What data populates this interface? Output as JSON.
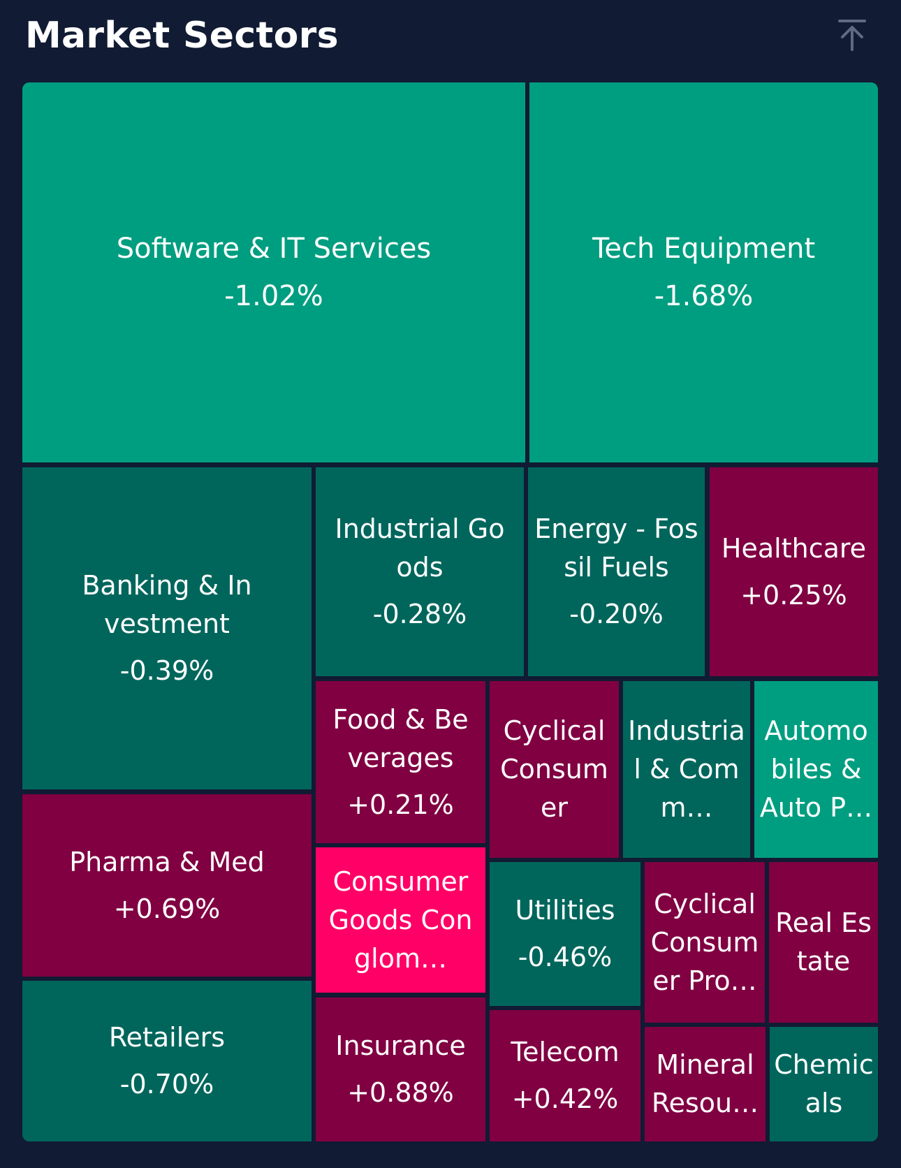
{
  "header": {
    "title": "Market Sectors",
    "scroll_top_icon": "arrow-up-to-line-icon"
  },
  "colors": {
    "background": "#111b33",
    "bright_green": "#009e80",
    "dark_green": "#00665c",
    "dark_red": "#800042",
    "bright_pink": "#ff0066"
  },
  "sectors": [
    {
      "name": "Software & IT Services",
      "change": "-1.02%",
      "color": "bright_green"
    },
    {
      "name": "Tech Equipment",
      "change": "-1.68%",
      "color": "bright_green"
    },
    {
      "name": "Banking & Investment",
      "change": "-0.39%",
      "color": "dark_green"
    },
    {
      "name": "Industrial Goods",
      "change": "-0.28%",
      "color": "dark_green"
    },
    {
      "name": "Energy - Fossil Fuels",
      "change": "-0.20%",
      "color": "dark_green"
    },
    {
      "name": "Healthcare",
      "change": "+0.25%",
      "color": "dark_red"
    },
    {
      "name": "Food & Beverages",
      "change": "+0.21%",
      "color": "dark_red"
    },
    {
      "name": "Cyclical Consumer",
      "change": "",
      "color": "dark_red"
    },
    {
      "name": "Industrial & Comm…",
      "change": "",
      "color": "dark_green"
    },
    {
      "name": "Automobiles & Auto P…",
      "change": "",
      "color": "bright_green"
    },
    {
      "name": "Pharma & Med",
      "change": "+0.69%",
      "color": "dark_red"
    },
    {
      "name": "Consumer Goods Conglom…",
      "change": "",
      "color": "bright_pink"
    },
    {
      "name": "Utilities",
      "change": "-0.46%",
      "color": "dark_green"
    },
    {
      "name": "Cyclical Consumer Pro…",
      "change": "",
      "color": "dark_red"
    },
    {
      "name": "Real Estate",
      "change": "",
      "color": "dark_red"
    },
    {
      "name": "Retailers",
      "change": "-0.70%",
      "color": "dark_green"
    },
    {
      "name": "Insurance",
      "change": "+0.88%",
      "color": "dark_red"
    },
    {
      "name": "Telecom",
      "change": "+0.42%",
      "color": "dark_red"
    },
    {
      "name": "Mineral Resou…",
      "change": "",
      "color": "dark_red"
    },
    {
      "name": "Chemicals",
      "change": "",
      "color": "dark_green"
    }
  ]
}
